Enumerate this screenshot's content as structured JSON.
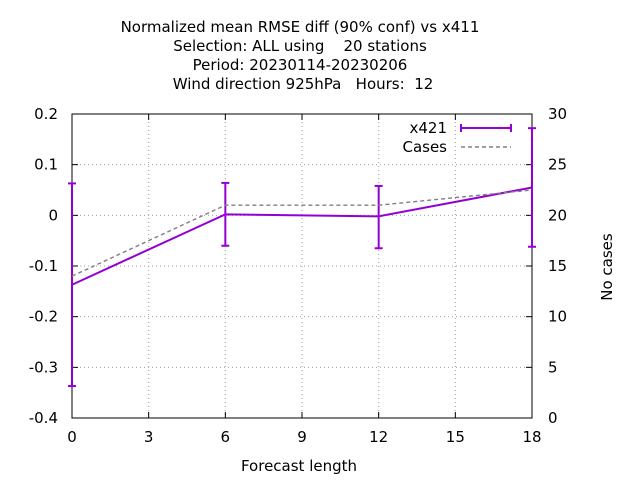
{
  "chart_data": {
    "type": "line",
    "title_lines": [
      "Normalized mean RMSE diff (90% conf) vs x411",
      "Selection: ALL using    20 stations",
      "Period: 20230114-20230206",
      "Wind direction 925hPa   Hours:  12"
    ],
    "xlabel": "Forecast length",
    "ylabel": "",
    "y2label": "No cases",
    "xlim": [
      0,
      18
    ],
    "ylim": [
      -0.4,
      0.2
    ],
    "y2lim": [
      0,
      30
    ],
    "xticks": [
      0,
      3,
      6,
      9,
      12,
      15,
      18
    ],
    "xtick_labels": [
      "0",
      "3",
      "6",
      "9",
      "12",
      "15",
      "18"
    ],
    "yticks": [
      -0.4,
      -0.3,
      -0.2,
      -0.1,
      0,
      0.1,
      0.2
    ],
    "ytick_labels": [
      "-0.4",
      "-0.3",
      "-0.2",
      "-0.1",
      "0",
      "0.1",
      "0.2"
    ],
    "y2ticks": [
      0,
      5,
      10,
      15,
      20,
      25,
      30
    ],
    "y2tick_labels": [
      "0",
      "5",
      "10",
      "15",
      "20",
      "25",
      "30"
    ],
    "grid": true,
    "legend_position": "top-right",
    "series": [
      {
        "name": "x421",
        "axis": "y",
        "color": "#9400d3",
        "x": [
          0,
          6,
          12,
          18
        ],
        "y": [
          -0.137,
          0.002,
          -0.002,
          0.055
        ],
        "err_low": [
          -0.337,
          -0.06,
          -0.065,
          -0.062
        ],
        "err_high": [
          0.063,
          0.064,
          0.058,
          0.172
        ],
        "style": "line+errorbars"
      },
      {
        "name": "Cases",
        "axis": "y2",
        "color": "#808080",
        "x": [
          0,
          6,
          12,
          18
        ],
        "y": [
          14,
          21,
          21,
          22.5
        ],
        "style": "dashed"
      }
    ]
  }
}
